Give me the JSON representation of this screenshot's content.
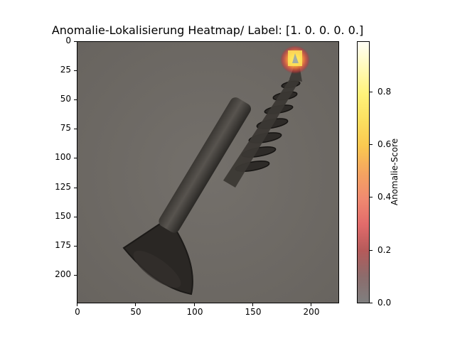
{
  "chart_data": {
    "type": "heatmap",
    "title": "Anomalie-Lokalisierung Heatmap/ Label: [1. 0. 0. 0. 0.]",
    "xlabel": "",
    "ylabel": "",
    "xlim": [
      0,
      224
    ],
    "ylim": [
      224,
      0
    ],
    "x_ticks": [
      0,
      50,
      100,
      150,
      200
    ],
    "y_ticks": [
      0,
      25,
      50,
      75,
      100,
      125,
      150,
      175,
      200
    ],
    "colorbar": {
      "label": "Anomalie-Score",
      "range": [
        0.0,
        1.0
      ],
      "ticks": [
        "0.0",
        "0.2",
        "0.4",
        "0.6",
        "0.8"
      ],
      "colormap": "hot (transparent overlay)"
    },
    "hotspot": {
      "x": 181,
      "y": 12,
      "peak_score": 1.0
    },
    "grid": false,
    "background_image": "grayscale photo of a screw (head bottom-left, tip top-right)"
  }
}
